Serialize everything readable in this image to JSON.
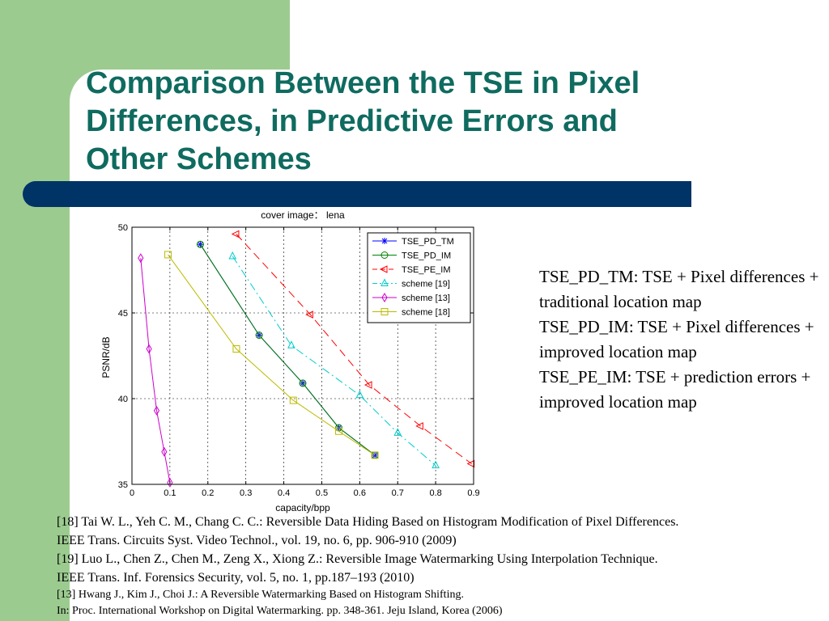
{
  "slide": {
    "title_lines": [
      "Comparison Between the TSE in Pixel",
      "Differences, in Predictive Errors and",
      "Other Schemes"
    ],
    "colors": {
      "title": "#0f6b60",
      "side_band": "#9ccb90",
      "rule_bar": "#003366"
    }
  },
  "notes": [
    "TSE_PD_TM: TSE + Pixel differences + traditional location map",
    "TSE_PD_IM: TSE + Pixel differences + improved location map",
    "TSE_PE_IM: TSE + prediction errors + improved location map"
  ],
  "references": [
    "[18] Tai W. L., Yeh C. M., Chang C. C.: Reversible Data Hiding Based on Histogram Modification of Pixel Differences.",
    "IEEE Trans. Circuits Syst. Video Technol., vol. 19, no. 6, pp. 906-910 (2009)",
    "[19] Luo L., Chen Z., Chen M., Zeng X., Xiong Z.: Reversible Image Watermarking Using Interpolation Technique.",
    "IEEE Trans. Inf. Forensics Security, vol. 5, no. 1, pp.187–193 (2010)",
    "[13] Hwang J., Kim J., Choi J.: A Reversible Watermarking Based on Histogram Shifting.",
    "In: Proc. International Workshop on Digital Watermarking. pp. 348-361. Jeju Island, Korea (2006)"
  ],
  "chart_data": {
    "type": "line",
    "title": "cover image： lena",
    "xlabel": "capacity/bpp",
    "ylabel": "PSNR/dB",
    "xlim": [
      0,
      0.9
    ],
    "ylim": [
      35,
      50
    ],
    "x_ticks": [
      0,
      0.1,
      0.2,
      0.3,
      0.4,
      0.5,
      0.6,
      0.7,
      0.8,
      0.9
    ],
    "y_ticks": [
      35,
      40,
      45,
      50
    ],
    "x_tick_labels": [
      "0",
      "0.1",
      "0.2",
      "0.3",
      "0.4",
      "0.5",
      "0.6",
      "0.7",
      "0.8",
      "0.9"
    ],
    "y_tick_labels": [
      "35",
      "40",
      "45",
      "50"
    ],
    "grid": true,
    "legend_position": "top-right",
    "series": [
      {
        "name": "TSE_PD_TM",
        "color": "#0000ff",
        "marker": "asterisk",
        "dash": "solid",
        "x": [
          0.18,
          0.335,
          0.45,
          0.545,
          0.64
        ],
        "y": [
          49.0,
          43.7,
          40.9,
          38.3,
          36.7
        ]
      },
      {
        "name": "TSE_PD_IM",
        "color": "#008000",
        "marker": "circle",
        "dash": "solid",
        "x": [
          0.18,
          0.335,
          0.45,
          0.545,
          0.64
        ],
        "y": [
          49.0,
          43.7,
          40.9,
          38.3,
          36.7
        ]
      },
      {
        "name": "TSE_PE_IM",
        "color": "#ff0000",
        "marker": "triangle-left",
        "dash": "dashed",
        "x": [
          0.275,
          0.47,
          0.625,
          0.76,
          0.895
        ],
        "y": [
          49.6,
          44.9,
          40.8,
          38.4,
          36.2
        ]
      },
      {
        "name": "scheme [19]",
        "color": "#00cccc",
        "marker": "triangle-up",
        "dash": "dashdot",
        "x": [
          0.265,
          0.42,
          0.6,
          0.7,
          0.8
        ],
        "y": [
          48.3,
          43.1,
          40.2,
          38.0,
          36.1
        ]
      },
      {
        "name": "scheme [13]",
        "color": "#cc00cc",
        "marker": "diamond",
        "dash": "solid",
        "x": [
          0.023,
          0.045,
          0.065,
          0.085,
          0.1
        ],
        "y": [
          48.2,
          42.9,
          39.3,
          36.9,
          35.1
        ]
      },
      {
        "name": "scheme [18]",
        "color": "#bbbb00",
        "marker": "square",
        "dash": "solid",
        "x": [
          0.095,
          0.275,
          0.425,
          0.545,
          0.64
        ],
        "y": [
          48.4,
          42.9,
          39.9,
          38.1,
          36.7
        ]
      }
    ]
  }
}
